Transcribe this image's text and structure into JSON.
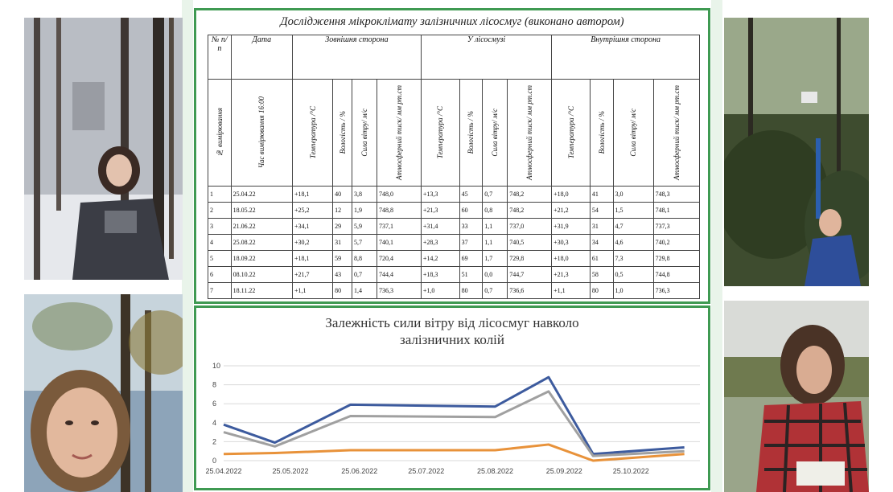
{
  "table": {
    "title": "Дослідження мікроклімату залізничних лісосмуг (виконано автором)",
    "header_no": "№ п/п",
    "header_date": "Дата",
    "group_outer": "Зовнішня сторона",
    "group_in": "У лісосмузі",
    "group_inner": "Внутрішня сторона",
    "col_measure": "№ вимірювання",
    "col_time": "Час вимірювання 16:00",
    "col_temp": "Температура /°C",
    "col_hum": "Вологість / %",
    "col_wind": "Сила вітру/ м/с",
    "col_press": "Атмосферний тиск/ мм рт.ст",
    "rows": [
      [
        "1",
        "25.04.22",
        "+18,1",
        "40",
        "3,8",
        "748,0",
        "+13,3",
        "45",
        "0,7",
        "748,2",
        "+18,0",
        "41",
        "3,0",
        "748,3"
      ],
      [
        "2",
        "18.05.22",
        "+25,2",
        "12",
        "1,9",
        "748,8",
        "+21,3",
        "60",
        "0,8",
        "748,2",
        "+21,2",
        "54",
        "1,5",
        "748,1"
      ],
      [
        "3",
        "21.06.22",
        "+34,1",
        "29",
        "5,9",
        "737,1",
        "+31,4",
        "33",
        "1,1",
        "737,0",
        "+31,9",
        "31",
        "4,7",
        "737,3"
      ],
      [
        "4",
        "25.08.22",
        "+30,2",
        "31",
        "5,7",
        "740,1",
        "+28,3",
        "37",
        "1,1",
        "740,5",
        "+30,3",
        "34",
        "4,6",
        "740,2"
      ],
      [
        "5",
        "18.09.22",
        "+18,1",
        "59",
        "8,8",
        "720,4",
        "+14,2",
        "69",
        "1,7",
        "729,8",
        "+18,0",
        "61",
        "7,3",
        "729,8"
      ],
      [
        "6",
        "08.10.22",
        "+21,7",
        "43",
        "0,7",
        "744,4",
        "+18,3",
        "51",
        "0,0",
        "744,7",
        "+21,3",
        "58",
        "0,5",
        "744,8"
      ],
      [
        "7",
        "18.11.22",
        "+1,1",
        "80",
        "1,4",
        "736,3",
        "+1,0",
        "80",
        "0,7",
        "736,6",
        "+1,1",
        "80",
        "1,0",
        "736,3"
      ]
    ]
  },
  "chart_data": {
    "type": "line",
    "title": "Залежність сили вітру від лісосмуг навколо залізничних колій",
    "x": [
      "25.04.2022",
      "18.05.2022",
      "21.06.2022",
      "25.08.2022",
      "18.09.2022",
      "08.10.2022",
      "18.11.2022"
    ],
    "x_ticks": [
      "25.04.2022",
      "25.05.2022",
      "25.06.2022",
      "25.07.2022",
      "25.08.2022",
      "25.09.2022",
      "25.10.2022"
    ],
    "y_ticks": [
      "0",
      "2",
      "4",
      "6",
      "8",
      "10"
    ],
    "ylim": [
      0,
      10
    ],
    "grid": true,
    "series": [
      {
        "values": [
          3.8,
          1.9,
          5.9,
          5.7,
          8.8,
          0.7,
          1.4
        ],
        "color": "#3d5b9e"
      },
      {
        "values": [
          3.0,
          1.5,
          4.7,
          4.6,
          7.3,
          0.5,
          1.0
        ],
        "color": "#a0a0a0"
      },
      {
        "values": [
          0.7,
          0.8,
          1.1,
          1.1,
          1.7,
          0.0,
          0.7
        ],
        "color": "#e8923a"
      }
    ]
  },
  "photos": {
    "top_left": "girl-with-tablet-winter-forest",
    "bottom_left": "girl-selfie-forest",
    "top_right": "girl-raising-instrument-forest",
    "bottom_right": "girl-writing-field"
  }
}
